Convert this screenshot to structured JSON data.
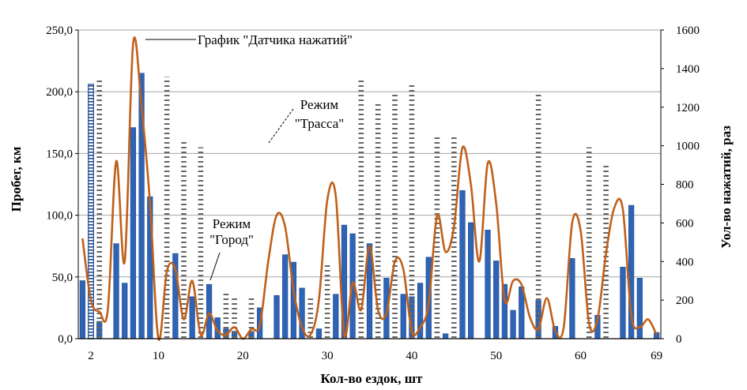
{
  "chart_data": {
    "type": "bar",
    "x": [
      1,
      2,
      3,
      4,
      5,
      6,
      7,
      8,
      9,
      10,
      11,
      12,
      13,
      14,
      15,
      16,
      17,
      18,
      19,
      20,
      21,
      22,
      23,
      24,
      25,
      26,
      27,
      28,
      29,
      30,
      31,
      32,
      33,
      34,
      35,
      36,
      37,
      38,
      39,
      40,
      41,
      42,
      43,
      44,
      45,
      46,
      47,
      48,
      49,
      50,
      51,
      52,
      53,
      54,
      55,
      56,
      57,
      58,
      59,
      60,
      61,
      62,
      63,
      64,
      65,
      66,
      67,
      68,
      69
    ],
    "xticks": [
      "2",
      "10",
      "20",
      "30",
      "40",
      "50",
      "60",
      "69"
    ],
    "xtick_values": [
      2,
      10,
      20,
      30,
      40,
      50,
      60,
      69
    ],
    "xlabel": "Кол-во ездок, шт",
    "ylabel_left": "Пробег, км",
    "ylabel_right": "Уол-во нажатий, раз",
    "ylim_left": [
      0,
      250
    ],
    "ylim_right": [
      0,
      1600
    ],
    "yticks_left": [
      "0,0",
      "50,0",
      "100,0",
      "150,0",
      "200,0",
      "250,0"
    ],
    "yticks_right": [
      "0",
      "200",
      "400",
      "600",
      "800",
      "1000",
      "1200",
      "1400",
      "1600"
    ],
    "grid": true,
    "series": [
      {
        "name": "Пробег",
        "kind": "bar",
        "axis": "left",
        "values": [
          47,
          0,
          14,
          0,
          77,
          45,
          171,
          215,
          115,
          0,
          0,
          69,
          0,
          34,
          0,
          44,
          17,
          8,
          6,
          0,
          6,
          25,
          0,
          35,
          68,
          62,
          41,
          0,
          8,
          0,
          36,
          92,
          85,
          0,
          77,
          0,
          49,
          0,
          36,
          34,
          45,
          66,
          0,
          4,
          0,
          120,
          94,
          0,
          88,
          63,
          44,
          23,
          42,
          0,
          31,
          0,
          10,
          0,
          65,
          0,
          0,
          19,
          0,
          0,
          58,
          108,
          49,
          0,
          5
        ]
      },
      {
        "name": "Режим \"Город\"",
        "kind": "bar",
        "axis": "left",
        "values": [
          0,
          206,
          0,
          0,
          0,
          0,
          0,
          0,
          0,
          0,
          0,
          0,
          0,
          0,
          0,
          0,
          0,
          0,
          0,
          0,
          0,
          0,
          0,
          0,
          0,
          0,
          0,
          0,
          0,
          0,
          0,
          0,
          0,
          0,
          0,
          0,
          0,
          0,
          0,
          0,
          0,
          0,
          0,
          0,
          0,
          0,
          0,
          0,
          0,
          0,
          0,
          0,
          0,
          0,
          0,
          0,
          0,
          0,
          0,
          0,
          0,
          0,
          0,
          0,
          0,
          0,
          0,
          0,
          0
        ]
      },
      {
        "name": "Режим \"Трасса\"",
        "kind": "bar",
        "axis": "left",
        "values": [
          0,
          0,
          210,
          0,
          0,
          0,
          0,
          0,
          0,
          0,
          212,
          0,
          160,
          0,
          155,
          0,
          0,
          38,
          34,
          0,
          34,
          0,
          0,
          0,
          0,
          0,
          0,
          35,
          0,
          60,
          0,
          0,
          0,
          210,
          0,
          190,
          0,
          200,
          0,
          207,
          0,
          0,
          165,
          0,
          165,
          0,
          0,
          0,
          0,
          0,
          0,
          0,
          0,
          0,
          200,
          0,
          0,
          0,
          0,
          0,
          155,
          0,
          140,
          0,
          0,
          0,
          0,
          0,
          0
        ]
      },
      {
        "name": "График \"Датчика нажатий\"",
        "kind": "line",
        "axis": "right",
        "values": [
          520,
          200,
          140,
          150,
          920,
          400,
          1530,
          1200,
          700,
          0,
          350,
          360,
          100,
          300,
          20,
          130,
          40,
          20,
          60,
          0,
          50,
          70,
          400,
          640,
          580,
          250,
          60,
          20,
          200,
          720,
          740,
          20,
          290,
          150,
          480,
          150,
          130,
          400,
          360,
          40,
          60,
          180,
          640,
          450,
          580,
          990,
          800,
          400,
          910,
          700,
          200,
          300,
          280,
          110,
          50,
          210,
          40,
          60,
          600,
          560,
          80,
          100,
          440,
          680,
          670,
          120,
          60,
          100,
          20
        ]
      }
    ],
    "annotations": [
      {
        "text": "График \"Датчика нажатий\""
      },
      {
        "text_line1": "Режим",
        "text_line2": "\"Трасса\""
      },
      {
        "text_line1": "Режим",
        "text_line2": "\"Город\""
      }
    ],
    "colors": {
      "bar": "#2e63b5",
      "bar_dark": "#1f4a8f",
      "line": "#c0601a",
      "grid": "#a6a6a6"
    }
  }
}
